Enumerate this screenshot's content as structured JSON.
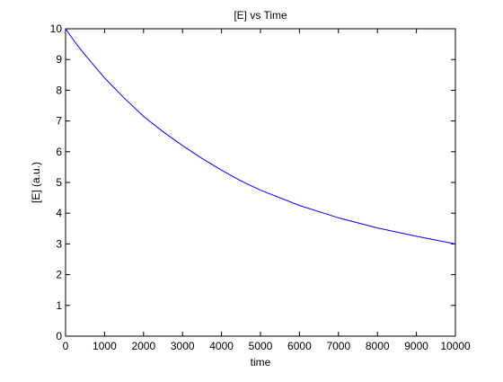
{
  "chart_data": {
    "type": "line",
    "title": "[E] vs Time",
    "xlabel": "time",
    "ylabel": "[E] (a.u.)",
    "xlim": [
      0,
      10000
    ],
    "ylim": [
      0,
      10
    ],
    "xticks": [
      0,
      1000,
      2000,
      3000,
      4000,
      5000,
      6000,
      7000,
      8000,
      9000,
      10000
    ],
    "yticks": [
      0,
      1,
      2,
      3,
      4,
      5,
      6,
      7,
      8,
      9,
      10
    ],
    "grid": false,
    "line_color": "#0000ff",
    "series": [
      {
        "x": [
          0,
          250,
          500,
          1000,
          1500,
          2000,
          2500,
          3000,
          3500,
          4000,
          4500,
          5000,
          6000,
          7000,
          8000,
          9000,
          10000
        ],
        "y": [
          10.0,
          9.55,
          9.15,
          8.4,
          7.75,
          7.15,
          6.65,
          6.2,
          5.78,
          5.4,
          5.05,
          4.75,
          4.25,
          3.85,
          3.52,
          3.25,
          3.0
        ]
      }
    ]
  }
}
